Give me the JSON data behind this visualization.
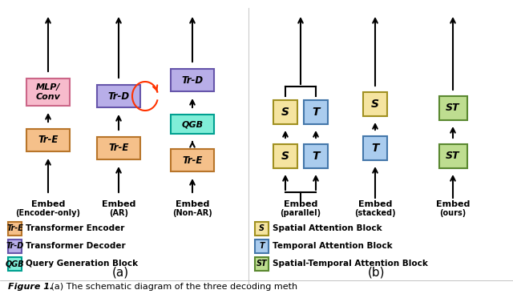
{
  "bg_color": "#ffffff",
  "colors": {
    "tre_fill": "#F5C08A",
    "tre_edge": "#B8752A",
    "trd_fill": "#B8AEE8",
    "trd_edge": "#6655AA",
    "qgb_fill": "#80EED8",
    "qgb_edge": "#00A090",
    "mlp_fill": "#F7BBCC",
    "mlp_edge": "#CC6688",
    "s_fill": "#F5E4A0",
    "s_edge": "#A09020",
    "t_fill": "#AACCEE",
    "t_edge": "#4477AA",
    "st_fill": "#BEDD90",
    "st_edge": "#5A8830",
    "arrow_color": "#000000",
    "loop_color": "#FF3300",
    "divider": "#cccccc"
  },
  "legend_a": [
    {
      "label": "Tr-E",
      "fill": "#F5C08A",
      "edge": "#B8752A",
      "desc": "Transformer Encoder"
    },
    {
      "label": "Tr-D",
      "fill": "#B8AEE8",
      "edge": "#6655AA",
      "desc": "Transformer Decoder"
    },
    {
      "label": "QGB",
      "fill": "#80EED8",
      "edge": "#00A090",
      "desc": "Query Generation Block"
    }
  ],
  "legend_b": [
    {
      "label": "S",
      "fill": "#F5E4A0",
      "edge": "#A09020",
      "desc": "Spatial Attention Block"
    },
    {
      "label": "T",
      "fill": "#AACCEE",
      "edge": "#4477AA",
      "desc": "Temporal Attention Block"
    },
    {
      "label": "ST",
      "fill": "#BEDD90",
      "edge": "#5A8830",
      "desc": "Spatial-Temporal Attention Block"
    }
  ],
  "panel_a_label": "(a)",
  "panel_b_label": "(b)",
  "caption_italic": "Figure 1.",
  "caption_rest": " (a) The schematic diagram of the three decoding meth"
}
